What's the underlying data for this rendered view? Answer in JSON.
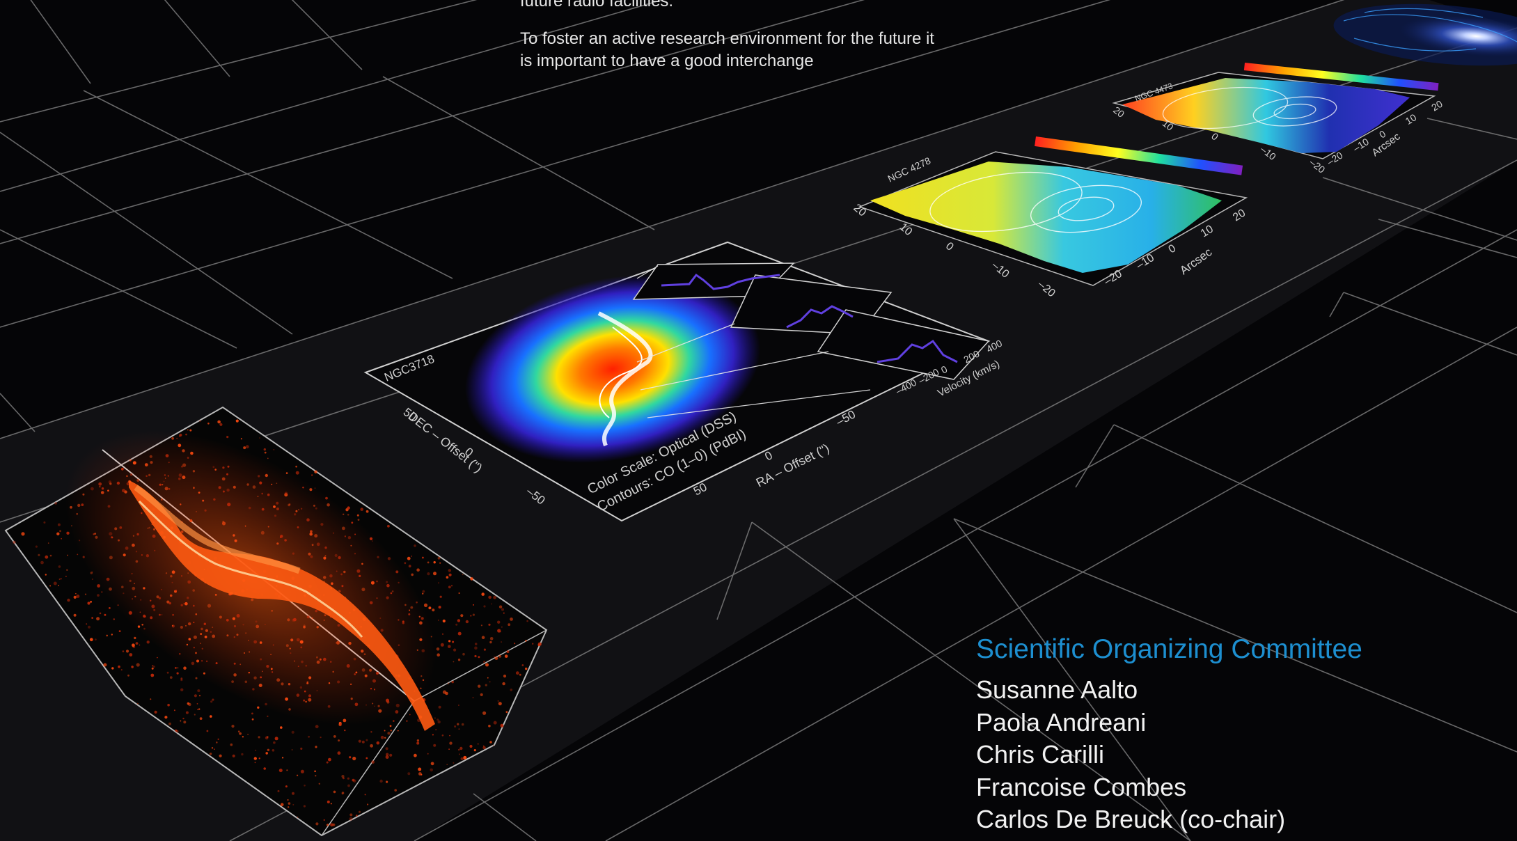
{
  "intro": {
    "paragraphs": [
      "future radio facilities.",
      "To foster an active research environment for the future it is important to have a good interchange"
    ]
  },
  "panels": {
    "cube": {
      "caption": ""
    },
    "ngc3718": {
      "title": "NGC3718",
      "color_scale": "Color Scale: Optical (DSS)",
      "contours": "Contours: CO (1–0) (PdBI)",
      "xlabel": "RA – Offset (\")",
      "ylabel": "DEC – Offset (\")",
      "xticks": [
        "50",
        "0",
        "–50"
      ],
      "yticks": [
        "50",
        "0",
        "–50"
      ],
      "velocity_label": "Velocity (km/s)",
      "velocity_ticks": [
        "–400",
        "–200",
        "0",
        "200",
        "400"
      ]
    },
    "ngc4278": {
      "title": "NGC 4278",
      "xlabel": "Arcsec",
      "xticks": [
        "–20",
        "–10",
        "0",
        "10",
        "20"
      ],
      "yticks": [
        "20",
        "10",
        "0",
        "–10",
        "–20"
      ]
    },
    "ngc4473": {
      "title": "NGC 4473",
      "xlabel": "Arcsec",
      "xticks": [
        "–20",
        "–10",
        "0",
        "10",
        "20"
      ],
      "yticks": [
        "20",
        "10",
        "0",
        "–10",
        "–20"
      ]
    }
  },
  "committee": {
    "heading": "Scientific Organizing Committee",
    "members": [
      "Susanne Aalto",
      "Paola Andreani",
      "Chris Carilli",
      "Francoise Combes",
      "Carlos De Breuck (co-chair)"
    ]
  },
  "colors": {
    "background": "#050507",
    "grid": "#8a8a8a",
    "heading_blue": "#1d8fd0",
    "text": "#f2f2f2"
  }
}
